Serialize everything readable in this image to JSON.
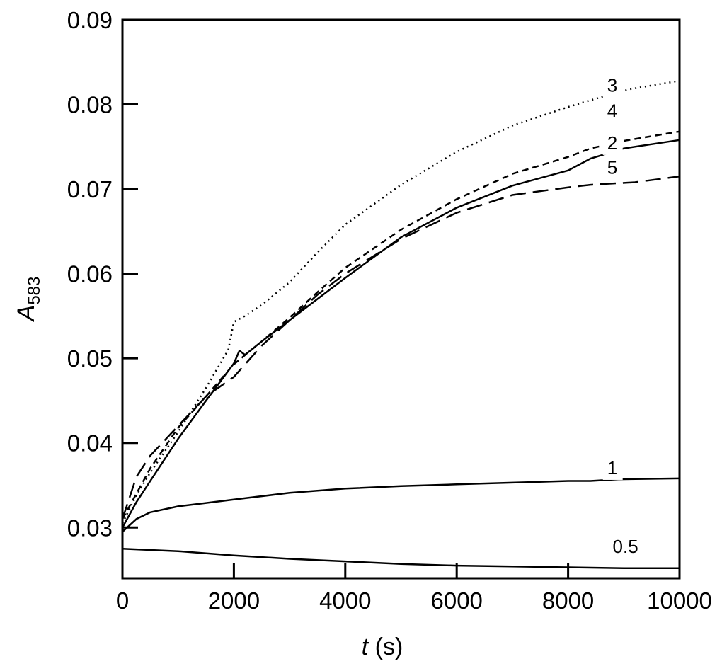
{
  "chart_data": {
    "type": "line",
    "xlabel": {
      "symbol": "t",
      "unit": " (s)"
    },
    "ylabel": {
      "symbol": "A",
      "subscript": "583"
    },
    "xlim": [
      0,
      10000
    ],
    "ylim": [
      0.024,
      0.09
    ],
    "x_ticks": [
      0,
      2000,
      4000,
      6000,
      8000,
      10000
    ],
    "x_tick_labels": [
      "0",
      "2000",
      "4000",
      "6000",
      "8000",
      "10000"
    ],
    "y_ticks": [
      0.03,
      0.04,
      0.05,
      0.06,
      0.07,
      0.08,
      0.09
    ],
    "y_tick_labels": [
      "0.03",
      "0.04",
      "0.05",
      "0.06",
      "0.07",
      "0.08",
      "0.09"
    ],
    "grid": false,
    "legend": "none",
    "series": [
      {
        "name": "0.5",
        "style": "solid",
        "x": [
          0,
          1000,
          2000,
          3000,
          4000,
          5000,
          6000,
          7000,
          8000,
          9000,
          10000
        ],
        "y": [
          0.0275,
          0.0272,
          0.0267,
          0.0263,
          0.026,
          0.0257,
          0.0255,
          0.0254,
          0.0253,
          0.0252,
          0.0252
        ]
      },
      {
        "name": "1",
        "style": "solid",
        "x": [
          0,
          250,
          500,
          1000,
          1500,
          2000,
          3000,
          4000,
          5000,
          6000,
          7000,
          8000,
          8400,
          8900,
          10000
        ],
        "y": [
          0.0295,
          0.031,
          0.0318,
          0.0325,
          0.0329,
          0.0333,
          0.0341,
          0.0346,
          0.0349,
          0.0351,
          0.0353,
          0.0355,
          0.0355,
          0.0357,
          0.0358
        ]
      },
      {
        "name": "2",
        "style": "solid",
        "x": [
          0,
          250,
          500,
          1000,
          1500,
          2000,
          2100,
          2200,
          2500,
          3000,
          3500,
          4000,
          5000,
          6000,
          7000,
          8000,
          8400,
          9000,
          10000
        ],
        "y": [
          0.03,
          0.033,
          0.0355,
          0.0405,
          0.045,
          0.0494,
          0.0509,
          0.0504,
          0.052,
          0.0545,
          0.057,
          0.0595,
          0.0643,
          0.0678,
          0.0704,
          0.0722,
          0.0736,
          0.0748,
          0.0758
        ]
      },
      {
        "name": "3",
        "style": "dotted",
        "x": [
          0,
          250,
          500,
          1000,
          1500,
          1900,
          2000,
          2200,
          2500,
          3000,
          3500,
          4000,
          5000,
          6000,
          7000,
          8000,
          8400,
          9100,
          10000
        ],
        "y": [
          0.0305,
          0.0338,
          0.0365,
          0.0413,
          0.0465,
          0.051,
          0.0543,
          0.055,
          0.0563,
          0.059,
          0.0625,
          0.0658,
          0.0705,
          0.0744,
          0.0775,
          0.0797,
          0.0805,
          0.0818,
          0.0828
        ]
      },
      {
        "name": "4",
        "style": "short-dash",
        "x": [
          0,
          250,
          500,
          1000,
          1500,
          2000,
          2500,
          3000,
          3500,
          4000,
          5000,
          6000,
          7000,
          8000,
          8400,
          9000,
          10000
        ],
        "y": [
          0.031,
          0.034,
          0.037,
          0.0418,
          0.0455,
          0.0493,
          0.052,
          0.0548,
          0.0578,
          0.0607,
          0.0652,
          0.0688,
          0.0718,
          0.0738,
          0.0748,
          0.0757,
          0.0768
        ]
      },
      {
        "name": "5",
        "style": "long-dash",
        "x": [
          0,
          250,
          500,
          1000,
          1500,
          2000,
          2500,
          3000,
          3500,
          4000,
          5000,
          6000,
          7000,
          8000,
          8400,
          9200,
          10000
        ],
        "y": [
          0.031,
          0.036,
          0.0385,
          0.042,
          0.0455,
          0.0478,
          0.0515,
          0.0545,
          0.0575,
          0.06,
          0.0641,
          0.0672,
          0.0693,
          0.0702,
          0.0705,
          0.0708,
          0.0715
        ]
      }
    ],
    "annotations": [
      {
        "text": "3",
        "x": 8700,
        "y": 0.0815
      },
      {
        "text": "4",
        "x": 8700,
        "y": 0.0785
      },
      {
        "text": "2",
        "x": 8700,
        "y": 0.0747
      },
      {
        "text": "5",
        "x": 8700,
        "y": 0.0718
      },
      {
        "text": "1",
        "x": 8700,
        "y": 0.0363
      },
      {
        "text": "0.5",
        "x": 8800,
        "y": 0.027
      }
    ]
  }
}
